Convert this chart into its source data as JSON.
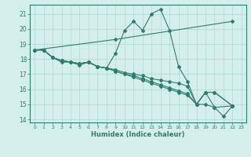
{
  "lines": [
    {
      "x": [
        0,
        1,
        2,
        3,
        4,
        5,
        6,
        7,
        8,
        9,
        10,
        11,
        12,
        13,
        14,
        15,
        16,
        17,
        18,
        19,
        20,
        21,
        22
      ],
      "y": [
        18.6,
        18.6,
        18.1,
        17.8,
        17.8,
        17.6,
        17.8,
        17.5,
        17.4,
        18.4,
        19.9,
        20.5,
        19.9,
        21.0,
        21.3,
        19.9,
        17.5,
        16.5,
        15.0,
        15.8,
        14.8,
        14.2,
        14.9
      ]
    },
    {
      "x": [
        0,
        1,
        2,
        3,
        4,
        5,
        6,
        7,
        8,
        9,
        10,
        11,
        12,
        13,
        14,
        15,
        16,
        17,
        18,
        19,
        20,
        22
      ],
      "y": [
        18.6,
        18.6,
        18.1,
        17.9,
        17.8,
        17.7,
        17.8,
        17.5,
        17.4,
        17.3,
        17.1,
        17.0,
        16.9,
        16.7,
        16.6,
        16.5,
        16.4,
        16.2,
        15.0,
        15.0,
        14.8,
        14.9
      ]
    },
    {
      "x": [
        0,
        1,
        2,
        3,
        4,
        5,
        6,
        7,
        8,
        9,
        10,
        11,
        12,
        13,
        14,
        15,
        16,
        17,
        18,
        19,
        20,
        22
      ],
      "y": [
        18.6,
        18.6,
        18.1,
        17.9,
        17.8,
        17.7,
        17.8,
        17.5,
        17.4,
        17.2,
        17.0,
        16.9,
        16.7,
        16.5,
        16.3,
        16.1,
        15.9,
        15.7,
        15.0,
        15.8,
        15.8,
        14.9
      ]
    },
    {
      "x": [
        0,
        1,
        2,
        3,
        4,
        5,
        6,
        7,
        8,
        9,
        10,
        11,
        12,
        13,
        14,
        15,
        16,
        17,
        18,
        19,
        20,
        22
      ],
      "y": [
        18.6,
        18.6,
        18.1,
        17.9,
        17.8,
        17.7,
        17.8,
        17.5,
        17.4,
        17.2,
        17.0,
        16.8,
        16.6,
        16.4,
        16.2,
        16.0,
        15.8,
        15.6,
        15.0,
        15.8,
        15.8,
        14.9
      ]
    },
    {
      "x": [
        0,
        9,
        22
      ],
      "y": [
        18.6,
        19.3,
        20.5
      ]
    }
  ],
  "color": "#2e7d6e",
  "bg_color": "#d4eeeb",
  "grid_color": "#b0d8d4",
  "xlabel": "Humidex (Indice chaleur)",
  "ylim": [
    13.8,
    21.6
  ],
  "xlim": [
    -0.5,
    23.5
  ],
  "yticks": [
    14,
    15,
    16,
    17,
    18,
    19,
    20,
    21
  ],
  "xticks": [
    0,
    1,
    2,
    3,
    4,
    5,
    6,
    7,
    8,
    9,
    10,
    11,
    12,
    13,
    14,
    15,
    16,
    17,
    18,
    19,
    20,
    21,
    22,
    23
  ]
}
